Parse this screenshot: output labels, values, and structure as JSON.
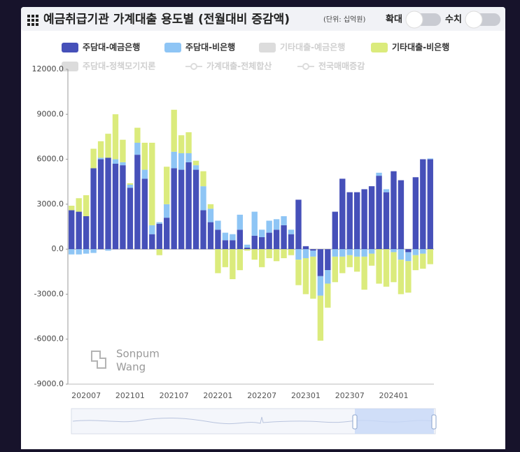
{
  "chart_data": {
    "type": "stacked_bar",
    "title": "예금취급기관 가계대출 용도별 (전월대비 증감액)",
    "subtitle": "(단위: 십억원)",
    "controls": [
      "확대",
      "수치"
    ],
    "watermark": [
      "Sonpum",
      "Wang"
    ],
    "categories": [
      null,
      null,
      "202007",
      null,
      null,
      null,
      null,
      null,
      "202101",
      null,
      null,
      null,
      null,
      null,
      "202107",
      null,
      null,
      null,
      null,
      null,
      "202201",
      null,
      null,
      null,
      null,
      null,
      "202207",
      null,
      null,
      null,
      null,
      null,
      "202301",
      null,
      null,
      null,
      null,
      null,
      "202307",
      null,
      null,
      null,
      null,
      null,
      "202401",
      null,
      null,
      null,
      null,
      null
    ],
    "series": [
      {
        "name": "주담대-예금은행",
        "color": "#4650b9",
        "values": [
          2600,
          2500,
          2200,
          5400,
          6000,
          6100,
          5700,
          5600,
          4100,
          6300,
          4700,
          1000,
          1700,
          2100,
          5400,
          5300,
          5800,
          5300,
          2600,
          1800,
          1300,
          600,
          600,
          1300,
          100,
          900,
          800,
          1100,
          1300,
          1600,
          1000,
          3300,
          200,
          -100,
          -1800,
          -1400,
          2500,
          4700,
          3800,
          3800,
          4000,
          4200,
          4900,
          3800,
          5200,
          4600,
          -200,
          4800,
          6000,
          6000
        ]
      },
      {
        "name": "주담대-비은행",
        "color": "#8ec5f5",
        "values": [
          -350,
          -350,
          -300,
          -250,
          100,
          -100,
          300,
          200,
          200,
          800,
          600,
          600,
          100,
          900,
          1100,
          1100,
          600,
          300,
          1600,
          900,
          600,
          500,
          400,
          1000,
          200,
          1600,
          500,
          800,
          700,
          600,
          300,
          -700,
          -600,
          -400,
          -1300,
          -900,
          -500,
          -500,
          -400,
          -500,
          -500,
          -300,
          200,
          200,
          -200,
          -700,
          -600,
          -400,
          -300,
          50
        ]
      },
      {
        "name": "기타대출-비은행",
        "color": "#dbeb7c",
        "values": [
          300,
          900,
          1400,
          1300,
          1100,
          1600,
          3000,
          1500,
          100,
          1000,
          1800,
          5500,
          -400,
          2500,
          2800,
          1200,
          1400,
          300,
          1000,
          300,
          -1600,
          -1200,
          -2000,
          -1400,
          -100,
          -700,
          -1200,
          -600,
          -800,
          -600,
          -400,
          -1700,
          -2400,
          -2800,
          -3000,
          -1600,
          -1700,
          -1100,
          -800,
          -1000,
          -2200,
          -800,
          -2300,
          -2500,
          -2000,
          -2300,
          -2100,
          -1000,
          -1000,
          -1000
        ]
      }
    ],
    "legend_items": [
      {
        "name": "주담대-예금은행",
        "kind": "bar",
        "active": true
      },
      {
        "name": "주담대-비은행",
        "kind": "bar",
        "active": true
      },
      {
        "name": "기타대출-예금은행",
        "kind": "bar",
        "active": false
      },
      {
        "name": "기타대출-비은행",
        "kind": "bar",
        "active": true
      },
      {
        "name": "주담대-정책모기지론",
        "kind": "bar",
        "active": false
      },
      {
        "name": "가계대출-전체합산",
        "kind": "line",
        "active": false
      },
      {
        "name": "전국매매증감",
        "kind": "line",
        "active": false
      }
    ],
    "ylim": [
      -9000,
      12000
    ],
    "yticks": [
      {
        "value": -9000,
        "label": "-9000.0"
      },
      {
        "value": -6000,
        "label": "-6000.0"
      },
      {
        "value": -3000,
        "label": "-3000.0"
      },
      {
        "value": 0,
        "label": "0.0"
      },
      {
        "value": 3000,
        "label": "3000.0"
      },
      {
        "value": 6000,
        "label": "6000.0"
      },
      {
        "value": 9000,
        "label": "9000.0"
      },
      {
        "value": 12000,
        "label": "12000.0"
      }
    ],
    "grid": false
  }
}
